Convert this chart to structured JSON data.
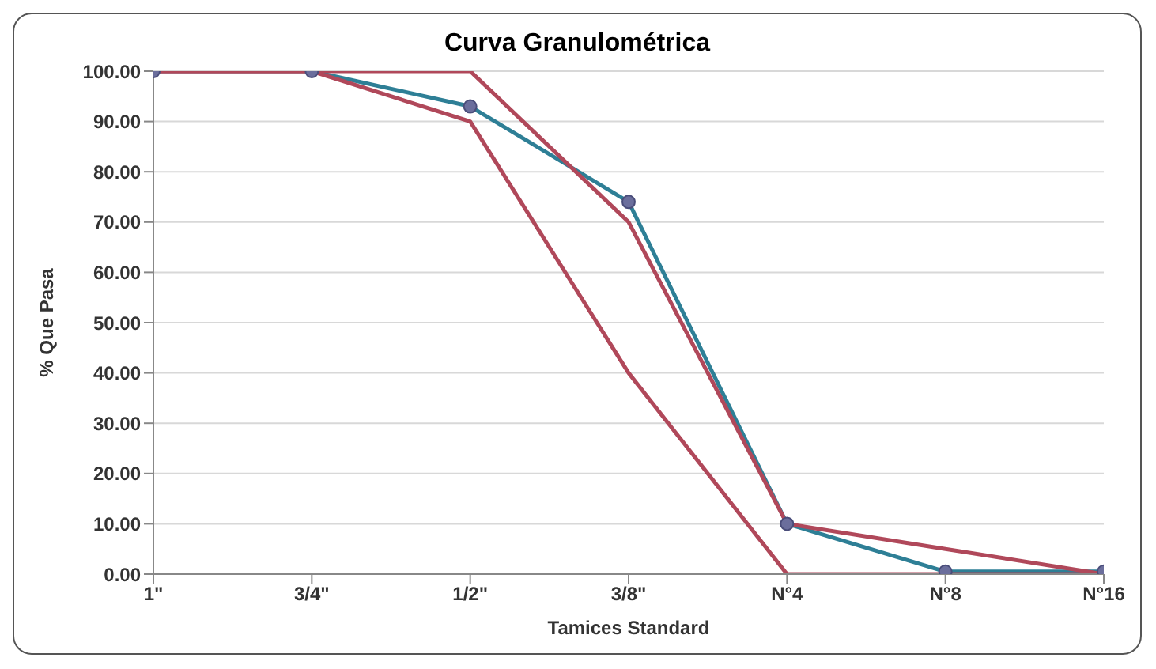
{
  "chart_data": {
    "type": "line",
    "title": "Curva Granulométrica",
    "xlabel": "Tamices Standard",
    "ylabel": "% Que Pasa",
    "categories": [
      "1\"",
      "3/4\"",
      "1/2\"",
      "3/8\"",
      "N°4",
      "N°8",
      "N°16"
    ],
    "series": [
      {
        "color": "#2e7f96",
        "values": [
          100,
          100,
          93,
          74,
          10,
          0.5,
          0.5
        ],
        "marker": "circle"
      },
      {
        "color": "#b0485a",
        "values": [
          100,
          100,
          100,
          70,
          10,
          5,
          0
        ],
        "marker": "none"
      },
      {
        "color": "#b0485a",
        "values": [
          100,
          100,
          90,
          40,
          0,
          0,
          0
        ],
        "marker": "none"
      }
    ],
    "ylim": [
      0,
      100
    ],
    "yticks": [
      {
        "value": 0,
        "label": "0.00"
      },
      {
        "value": 10,
        "label": "10.00"
      },
      {
        "value": 20,
        "label": "20.00"
      },
      {
        "value": 30,
        "label": "30.00"
      },
      {
        "value": 40,
        "label": "40.00"
      },
      {
        "value": 50,
        "label": "50.00"
      },
      {
        "value": 60,
        "label": "60.00"
      },
      {
        "value": 70,
        "label": "70.00"
      },
      {
        "value": 80,
        "label": "80.00"
      },
      {
        "value": 90,
        "label": "90.00"
      },
      {
        "value": 100,
        "label": "100.00"
      }
    ],
    "grid": "y",
    "legend": false,
    "line_style": "solid"
  }
}
